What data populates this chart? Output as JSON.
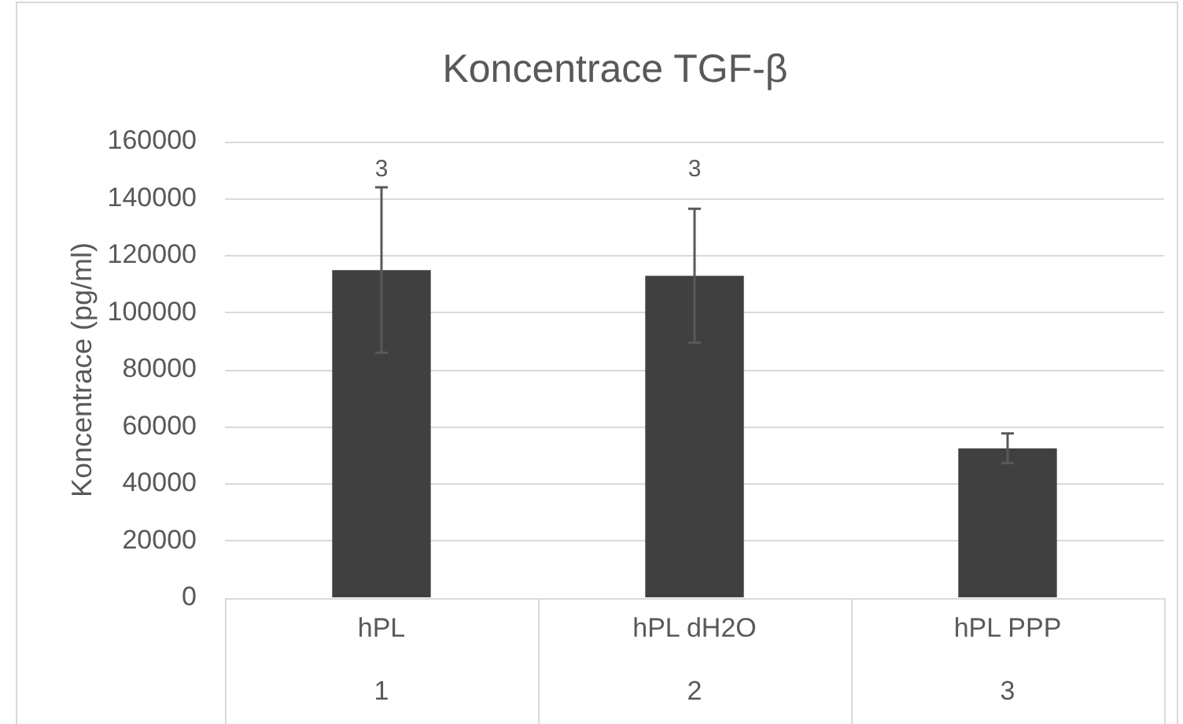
{
  "chart_data": {
    "type": "bar",
    "title": "Koncentrace TGF-β",
    "ylabel": "Koncentrace (pg/ml)",
    "categories": [
      "hPL\n1",
      "hPL dH2O\n2",
      "hPL PPP\n3"
    ],
    "values": [
      115000,
      113000,
      52500
    ],
    "errors": [
      29000,
      23500,
      5200
    ],
    "color": "#404040",
    "ylim": [
      0,
      160000
    ],
    "yticks": [
      0,
      20000,
      40000,
      60000,
      80000,
      100000,
      120000,
      140000,
      160000
    ],
    "grid": "y",
    "annotations": [
      "3",
      "3"
    ]
  }
}
